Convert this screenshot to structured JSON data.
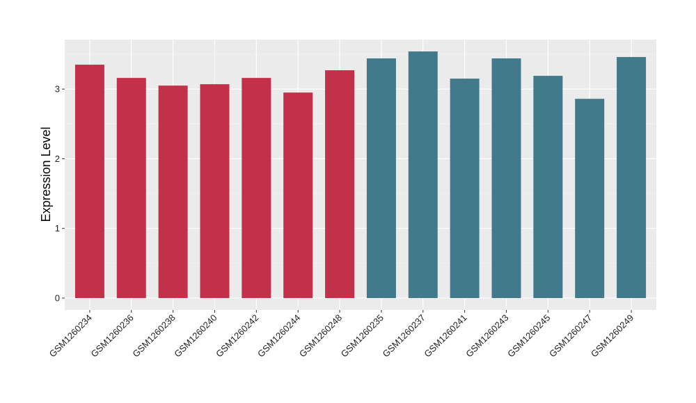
{
  "chart_data": {
    "type": "bar",
    "title": "",
    "xlabel": "",
    "ylabel": "Expression Level",
    "ylim": [
      -0.17,
      3.71
    ],
    "yticks": [
      0,
      1,
      2,
      3
    ],
    "grid": true,
    "categories": [
      "GSM1260234",
      "GSM1260236",
      "GSM1260238",
      "GSM1260240",
      "GSM1260242",
      "GSM1260244",
      "GSM1260248",
      "GSM1260235",
      "GSM1260237",
      "GSM1260241",
      "GSM1260243",
      "GSM1260245",
      "GSM1260247",
      "GSM1260249"
    ],
    "values": [
      3.35,
      3.16,
      3.05,
      3.07,
      3.16,
      2.95,
      3.27,
      3.44,
      3.54,
      3.15,
      3.44,
      3.19,
      2.86,
      3.46
    ],
    "groups": [
      0,
      0,
      0,
      0,
      0,
      0,
      0,
      1,
      1,
      1,
      1,
      1,
      1,
      1
    ],
    "colors": [
      "#C3304A",
      "#417A8B"
    ]
  }
}
